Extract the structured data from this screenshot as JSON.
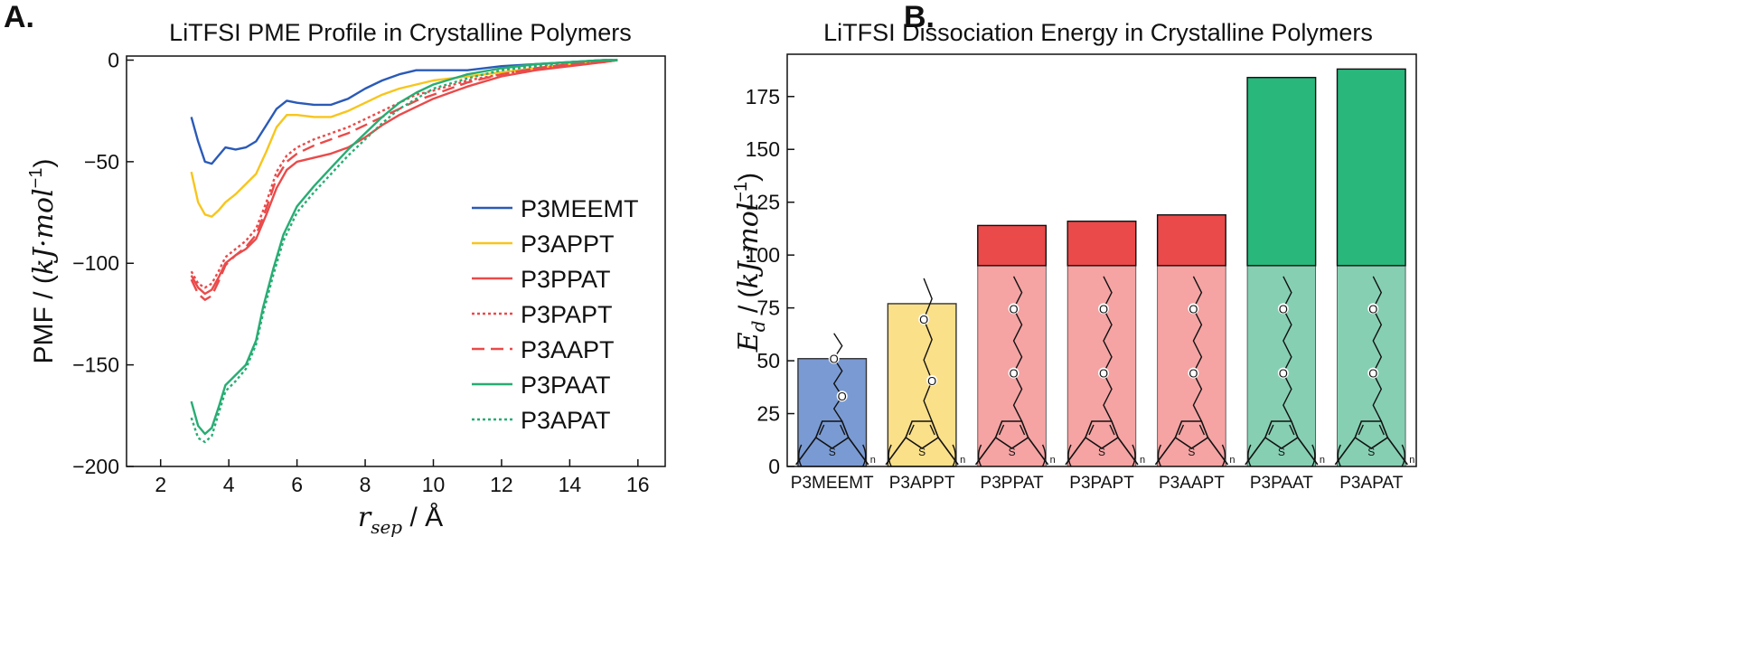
{
  "panels": {
    "a_label": "A.",
    "b_label": "B."
  },
  "chart_data": [
    {
      "type": "line",
      "title": "LiTFSI PME Profile in Crystalline Polymers",
      "xlabel_main": "r",
      "xlabel_sub": "sep",
      "xlabel_unit": " / Å",
      "ylabel_prefix": "PMF / (",
      "ylabel_units": "kJ·mol",
      "ylabel_exp": "−1",
      "ylabel_suffix": ")",
      "xlim": [
        1.0,
        16.8
      ],
      "ylim": [
        -200,
        2
      ],
      "xticks": [
        2,
        4,
        6,
        8,
        10,
        12,
        14,
        16
      ],
      "yticks": [
        0,
        -50,
        -100,
        -150,
        -200
      ],
      "ytick_labels": [
        "0",
        "−50",
        "−100",
        "−150",
        "−200"
      ],
      "legend_position": "center-right",
      "series": [
        {
          "name": "P3MEEMT",
          "color": "#2a5ab8",
          "style": "solid",
          "x": [
            2.9,
            3.1,
            3.3,
            3.5,
            3.7,
            3.9,
            4.2,
            4.5,
            4.8,
            5.1,
            5.4,
            5.7,
            6.0,
            6.5,
            7.0,
            7.5,
            8.0,
            8.5,
            9.0,
            9.5,
            10.0,
            11.0,
            12.0,
            13.0,
            14.0,
            15.0,
            15.4
          ],
          "y": [
            -28,
            -40,
            -50,
            -51,
            -47,
            -43,
            -44,
            -43,
            -40,
            -32,
            -24,
            -20,
            -21,
            -22,
            -22,
            -19,
            -14,
            -10,
            -7,
            -5,
            -5,
            -5,
            -3,
            -2,
            -1,
            0,
            0
          ]
        },
        {
          "name": "P3APPT",
          "color": "#f8c51c",
          "style": "solid",
          "x": [
            2.9,
            3.1,
            3.3,
            3.5,
            3.7,
            3.9,
            4.2,
            4.5,
            4.8,
            5.1,
            5.4,
            5.7,
            6.0,
            6.5,
            7.0,
            7.5,
            8.0,
            8.5,
            9.0,
            9.5,
            10.0,
            11.0,
            12.0,
            13.0,
            14.0,
            15.0,
            15.4
          ],
          "y": [
            -55,
            -70,
            -76,
            -77,
            -74,
            -70,
            -66,
            -61,
            -56,
            -45,
            -33,
            -27,
            -27,
            -28,
            -28,
            -25,
            -21,
            -17,
            -14,
            -12,
            -10,
            -8,
            -6,
            -4,
            -2,
            -1,
            0
          ]
        },
        {
          "name": "P3PPAT",
          "color": "#ea4a4a",
          "style": "solid",
          "x": [
            2.9,
            3.1,
            3.3,
            3.5,
            3.7,
            3.9,
            4.2,
            4.5,
            4.8,
            5.1,
            5.4,
            5.7,
            6.0,
            6.5,
            7.0,
            7.5,
            8.0,
            8.5,
            9.0,
            9.5,
            10.0,
            11.0,
            12.0,
            13.0,
            14.0,
            15.0,
            15.4
          ],
          "y": [
            -106,
            -112,
            -115,
            -113,
            -107,
            -100,
            -96,
            -93,
            -88,
            -76,
            -63,
            -54,
            -50,
            -48,
            -46,
            -43,
            -38,
            -32,
            -27,
            -23,
            -19,
            -13,
            -8,
            -5,
            -3,
            -1,
            0
          ]
        },
        {
          "name": "P3PAPT",
          "color": "#ea4a4a",
          "style": "dotted",
          "x": [
            2.9,
            3.1,
            3.3,
            3.5,
            3.7,
            3.9,
            4.2,
            4.5,
            4.8,
            5.1,
            5.4,
            5.7,
            6.0,
            6.5,
            7.0,
            7.5,
            8.0,
            8.5,
            9.0,
            9.5,
            10.0,
            11.0,
            12.0,
            13.0,
            14.0,
            15.0,
            15.4
          ],
          "y": [
            -104,
            -110,
            -112,
            -110,
            -104,
            -97,
            -93,
            -89,
            -83,
            -70,
            -55,
            -47,
            -43,
            -39,
            -36,
            -33,
            -29,
            -25,
            -21,
            -17,
            -15,
            -10,
            -7,
            -4,
            -2,
            -1,
            0
          ]
        },
        {
          "name": "P3AAPT",
          "color": "#ea4a4a",
          "style": "dashed",
          "x": [
            2.9,
            3.1,
            3.3,
            3.5,
            3.7,
            3.9,
            4.2,
            4.5,
            4.8,
            5.1,
            5.4,
            5.7,
            6.0,
            6.5,
            7.0,
            7.5,
            8.0,
            8.5,
            9.0,
            9.5,
            10.0,
            11.0,
            12.0,
            13.0,
            14.0,
            15.0,
            15.4
          ],
          "y": [
            -108,
            -115,
            -118,
            -116,
            -109,
            -101,
            -96,
            -92,
            -86,
            -73,
            -58,
            -50,
            -46,
            -42,
            -39,
            -36,
            -32,
            -28,
            -24,
            -20,
            -17,
            -11,
            -7,
            -4,
            -2,
            -1,
            0
          ]
        },
        {
          "name": "P3PAAT",
          "color": "#27ad73",
          "style": "solid",
          "x": [
            2.9,
            3.1,
            3.3,
            3.5,
            3.7,
            3.9,
            4.2,
            4.5,
            4.8,
            5.0,
            5.3,
            5.6,
            6.0,
            6.5,
            7.0,
            7.5,
            8.0,
            8.5,
            9.0,
            9.5,
            10.0,
            11.0,
            12.0,
            13.0,
            14.0,
            15.0,
            15.4
          ],
          "y": [
            -168,
            -180,
            -184,
            -181,
            -171,
            -160,
            -155,
            -150,
            -138,
            -122,
            -103,
            -86,
            -72,
            -62,
            -53,
            -44,
            -36,
            -28,
            -21,
            -16,
            -12,
            -7,
            -4,
            -2,
            -1,
            0,
            0
          ]
        },
        {
          "name": "P3APAT",
          "color": "#27ad73",
          "style": "dotted",
          "x": [
            2.9,
            3.1,
            3.3,
            3.5,
            3.7,
            3.9,
            4.2,
            4.5,
            4.8,
            5.0,
            5.3,
            5.6,
            6.0,
            6.5,
            7.0,
            7.5,
            8.0,
            8.5,
            9.0,
            9.5,
            10.0,
            11.0,
            12.0,
            13.0,
            14.0,
            15.0,
            15.4
          ],
          "y": [
            -176,
            -186,
            -188,
            -185,
            -174,
            -163,
            -158,
            -152,
            -140,
            -125,
            -106,
            -89,
            -75,
            -65,
            -56,
            -47,
            -39,
            -31,
            -24,
            -19,
            -14,
            -9,
            -5,
            -3,
            -1,
            0,
            0
          ]
        }
      ]
    },
    {
      "type": "bar",
      "title": "LiTFSI Dissociation Energy in Crystalline Polymers",
      "ylabel_main": "E",
      "ylabel_sub": "d",
      "ylabel_prefix": " / (",
      "ylabel_units": "kJ·mol",
      "ylabel_exp": "−1",
      "ylabel_suffix": ")",
      "ylim": [
        0,
        195
      ],
      "yticks": [
        0,
        25,
        50,
        75,
        100,
        125,
        150,
        175
      ],
      "categories": [
        "P3MEEMT",
        "P3APPT",
        "P3PPAT",
        "P3PAPT",
        "P3AAPT",
        "P3PAAT",
        "P3APAT"
      ],
      "values": [
        51,
        77,
        114,
        116,
        119,
        184,
        188
      ],
      "colors": [
        "#7a9ad3",
        "#fbe08a",
        "#f5a3a3",
        "#f5a3a3",
        "#f5a3a3",
        "#86cfb3",
        "#86cfb3"
      ],
      "top_colors": [
        "#7a9ad3",
        "#fbe08a",
        "#ea4a4a",
        "#ea4a4a",
        "#ea4a4a",
        "#29b77c",
        "#29b77c"
      ],
      "structure_band_value": 95,
      "thiophene_label": "S",
      "repeat_label": "n",
      "ether_label": "O"
    }
  ]
}
